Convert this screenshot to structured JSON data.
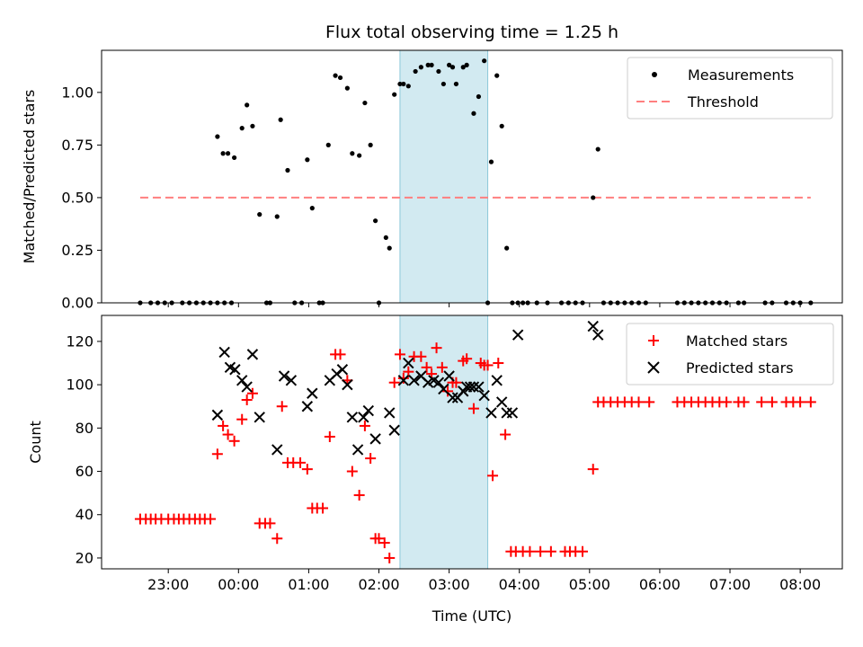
{
  "chart_data": [
    {
      "type": "scatter",
      "title": "Flux total observing time = 1.25 h",
      "xlabel": "",
      "ylabel": "Matched/Predicted stars",
      "ylim": [
        0,
        1.2
      ],
      "xlim": [
        -1.95,
        8.6
      ],
      "yticks": [
        0,
        0.25,
        0.5,
        0.75,
        1.0
      ],
      "ytick_labels": [
        "0.00",
        "0.25",
        "0.50",
        "0.75",
        "1.00"
      ],
      "highlight_span": [
        2.3,
        3.55
      ],
      "legend": [
        {
          "label": "Measurements",
          "marker": "dot"
        },
        {
          "label": "Threshold",
          "marker": "dash"
        }
      ],
      "threshold": {
        "value": 0.5,
        "x_start": -1.4,
        "x_end": 8.15,
        "color": "#ff7f7f"
      },
      "measurements": {
        "x": [
          -1.4,
          -1.25,
          -1.15,
          -1.05,
          -0.95,
          -0.8,
          -0.7,
          -0.6,
          -0.5,
          -0.4,
          -0.3,
          -0.2,
          -0.1,
          -0.3,
          -0.22,
          -0.15,
          -0.06,
          0.05,
          0.12,
          0.2,
          0.3,
          0.4,
          0.45,
          0.55,
          0.6,
          0.7,
          0.8,
          0.9,
          0.98,
          1.05,
          1.15,
          1.2,
          1.28,
          1.38,
          1.45,
          1.55,
          1.62,
          1.72,
          1.8,
          1.88,
          1.95,
          2.0,
          2.1,
          2.15,
          2.22,
          2.3,
          2.35,
          2.42,
          2.52,
          2.6,
          2.7,
          2.75,
          2.85,
          2.92,
          3.0,
          3.05,
          3.1,
          3.2,
          3.25,
          3.35,
          3.42,
          3.5,
          3.55,
          3.6,
          3.68,
          3.75,
          3.82,
          3.9,
          3.98,
          4.05,
          4.12,
          4.25,
          4.4,
          4.6,
          4.7,
          4.8,
          4.9,
          5.05,
          5.12,
          5.2,
          5.3,
          5.4,
          5.5,
          5.6,
          5.7,
          5.8,
          6.25,
          6.35,
          6.45,
          6.55,
          6.65,
          6.75,
          6.85,
          6.95,
          7.12,
          7.2,
          7.5,
          7.6,
          7.8,
          7.9,
          8.0,
          8.15
        ],
        "y": [
          0,
          0,
          0,
          0,
          0,
          0,
          0,
          0,
          0,
          0,
          0,
          0,
          0,
          0.79,
          0.71,
          0.71,
          0.69,
          0.83,
          0.94,
          0.84,
          0.42,
          0,
          0,
          0.41,
          0.87,
          0.63,
          0,
          0,
          0.68,
          0.45,
          0,
          0,
          0.75,
          1.08,
          1.07,
          1.02,
          0.71,
          0.7,
          0.95,
          0.75,
          0.39,
          0,
          0.31,
          0.26,
          0.99,
          1.04,
          1.04,
          1.03,
          1.1,
          1.12,
          1.13,
          1.13,
          1.1,
          1.04,
          1.13,
          1.12,
          1.04,
          1.12,
          1.13,
          0.9,
          0.98,
          1.15,
          0,
          0.67,
          1.08,
          0.84,
          0.26,
          0,
          0,
          0,
          0,
          0,
          0,
          0,
          0,
          0,
          0,
          0.5,
          0.73,
          0,
          0,
          0,
          0,
          0,
          0,
          0,
          0,
          0,
          0,
          0,
          0,
          0,
          0,
          0,
          0,
          0,
          0,
          0,
          0,
          0,
          0,
          0
        ]
      }
    },
    {
      "type": "scatter",
      "title": "",
      "xlabel": "Time (UTC)",
      "ylabel": "Count",
      "ylim": [
        15,
        132
      ],
      "xlim": [
        -1.95,
        8.6
      ],
      "yticks": [
        20,
        40,
        60,
        80,
        100,
        120
      ],
      "ytick_labels": [
        "20",
        "40",
        "60",
        "80",
        "100",
        "120"
      ],
      "xticks": [
        -1,
        0,
        1,
        2,
        3,
        4,
        5,
        6,
        7,
        8
      ],
      "xtick_labels": [
        "23:00",
        "00:00",
        "01:00",
        "02:00",
        "03:00",
        "04:00",
        "05:00",
        "06:00",
        "07:00",
        "08:00"
      ],
      "highlight_span": [
        2.3,
        3.55
      ],
      "legend": [
        {
          "label": "Matched stars",
          "marker": "plus",
          "color": "#ff0000"
        },
        {
          "label": "Predicted stars",
          "marker": "x",
          "color": "#000000"
        }
      ],
      "matched": {
        "x": [
          -1.4,
          -1.32,
          -1.25,
          -1.18,
          -1.1,
          -1.0,
          -0.92,
          -0.85,
          -0.78,
          -0.7,
          -0.62,
          -0.55,
          -0.48,
          -0.4,
          -0.3,
          -0.22,
          -0.15,
          -0.06,
          0.05,
          0.12,
          0.2,
          0.3,
          0.38,
          0.45,
          0.55,
          0.62,
          0.7,
          0.78,
          0.88,
          0.98,
          1.05,
          1.12,
          1.2,
          1.3,
          1.38,
          1.45,
          1.55,
          1.62,
          1.72,
          1.8,
          1.88,
          1.95,
          2.0,
          2.08,
          2.15,
          2.22,
          2.3,
          2.35,
          2.42,
          2.5,
          2.6,
          2.68,
          2.75,
          2.82,
          2.9,
          2.98,
          3.05,
          3.1,
          3.2,
          3.25,
          3.35,
          3.45,
          3.5,
          3.55,
          3.62,
          3.7,
          3.8,
          3.88,
          3.95,
          4.05,
          4.15,
          4.3,
          4.45,
          4.65,
          4.72,
          4.8,
          4.9,
          5.05,
          5.12,
          5.2,
          5.3,
          5.4,
          5.5,
          5.6,
          5.7,
          5.85,
          6.25,
          6.35,
          6.45,
          6.55,
          6.65,
          6.75,
          6.85,
          6.95,
          7.12,
          7.2,
          7.45,
          7.6,
          7.8,
          7.9,
          8.0,
          8.15
        ],
        "y": [
          38,
          38,
          38,
          38,
          38,
          38,
          38,
          38,
          38,
          38,
          38,
          38,
          38,
          38,
          68,
          81,
          77,
          74,
          84,
          93,
          96,
          36,
          36,
          36,
          29,
          90,
          64,
          64,
          64,
          61,
          43,
          43,
          43,
          76,
          114,
          114,
          102,
          60,
          49,
          81,
          66,
          29,
          29,
          27,
          20,
          101,
          114,
          103,
          106,
          113,
          113,
          108,
          105,
          117,
          108,
          97,
          101,
          101,
          111,
          112,
          89,
          110,
          109,
          109,
          58,
          110,
          77,
          23,
          23,
          23,
          23,
          23,
          23,
          23,
          23,
          23,
          23,
          61,
          92,
          92,
          92,
          92,
          92,
          92,
          92,
          92,
          92,
          92,
          92,
          92,
          92,
          92,
          92,
          92,
          92,
          92,
          92,
          92,
          92,
          92,
          92,
          92
        ],
        "color": "#ff0000"
      },
      "predicted": {
        "x": [
          -0.3,
          -0.2,
          -0.12,
          -0.05,
          0.05,
          0.12,
          0.2,
          0.3,
          0.55,
          0.65,
          0.75,
          0.98,
          1.05,
          1.3,
          1.4,
          1.48,
          1.55,
          1.62,
          1.7,
          1.78,
          1.85,
          1.95,
          2.15,
          2.22,
          2.35,
          2.42,
          2.5,
          2.6,
          2.7,
          2.78,
          2.85,
          2.92,
          3.0,
          3.05,
          3.12,
          3.2,
          3.25,
          3.3,
          3.35,
          3.42,
          3.5,
          3.6,
          3.68,
          3.75,
          3.82,
          3.9,
          3.98,
          5.05,
          5.12
        ],
        "y": [
          86,
          115,
          108,
          107,
          102,
          99,
          114,
          85,
          70,
          104,
          102,
          90,
          96,
          102,
          105,
          107,
          100,
          85,
          70,
          85,
          88,
          75,
          87,
          79,
          102,
          110,
          102,
          104,
          101,
          102,
          101,
          98,
          104,
          94,
          94,
          97,
          99,
          99,
          99,
          99,
          95,
          87,
          102,
          92,
          87,
          87,
          123,
          127,
          123
        ],
        "color": "#000000"
      }
    }
  ]
}
